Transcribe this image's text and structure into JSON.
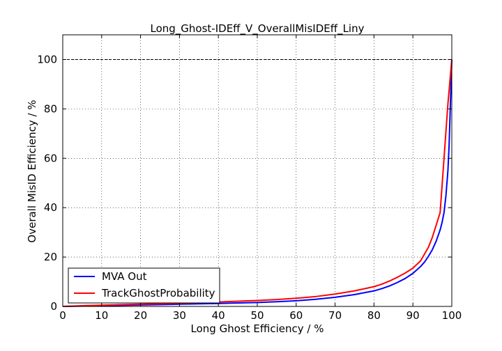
{
  "chart_data": {
    "type": "line",
    "title": "Long_Ghost-IDEff_V_OverallMisIDEff_Liny",
    "xlabel": "Long Ghost Efficiency / %",
    "ylabel": "Overall MisID Efficiency / %",
    "xlim": [
      0,
      100
    ],
    "ylim": [
      0,
      110
    ],
    "xticks": [
      "0",
      "10",
      "20",
      "30",
      "40",
      "50",
      "60",
      "70",
      "80",
      "90",
      "100"
    ],
    "yticks": [
      "0",
      "20",
      "40",
      "60",
      "80",
      "100"
    ],
    "grid": true,
    "reference_line_y": 100,
    "legend_position": "lower-left",
    "series": [
      {
        "name": "MVA Out",
        "color": "#0000ff",
        "x": [
          0,
          5,
          10,
          15,
          20,
          25,
          30,
          35,
          40,
          45,
          50,
          55,
          60,
          65,
          70,
          75,
          80,
          82,
          84,
          86,
          88,
          90,
          92,
          93,
          94,
          95,
          96,
          97,
          97.5,
          98,
          98.5,
          99,
          99.3,
          99.6,
          100
        ],
        "y": [
          0,
          0.15,
          0.3,
          0.45,
          0.6,
          0.75,
          0.9,
          1.05,
          1.2,
          1.4,
          1.6,
          1.9,
          2.3,
          2.9,
          3.7,
          4.8,
          6.3,
          7.2,
          8.3,
          9.7,
          11.3,
          13.4,
          16.2,
          18,
          20.3,
          23,
          26.5,
          31,
          34,
          38,
          45,
          55,
          65,
          80,
          100
        ]
      },
      {
        "name": "TrackGhostProbability",
        "color": "#ff0000",
        "x": [
          0,
          5,
          10,
          15,
          20,
          25,
          30,
          35,
          40,
          45,
          50,
          55,
          60,
          65,
          70,
          75,
          80,
          82,
          84,
          86,
          88,
          90,
          92,
          94,
          95,
          96,
          97,
          98,
          99,
          100
        ],
        "y": [
          0,
          0.3,
          0.5,
          0.7,
          0.9,
          1.1,
          1.3,
          1.5,
          1.8,
          2.1,
          2.4,
          2.8,
          3.3,
          4,
          5,
          6.3,
          8,
          9,
          10.3,
          11.8,
          13.5,
          15.5,
          18.5,
          24,
          28,
          33,
          38,
          60,
          82,
          100
        ]
      }
    ]
  }
}
